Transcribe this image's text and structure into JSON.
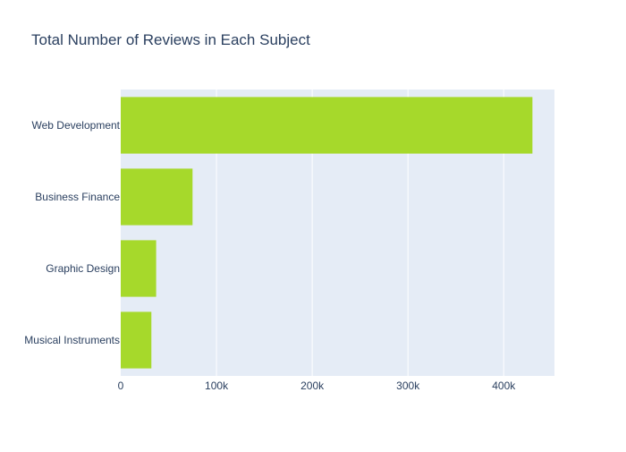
{
  "chart_data": {
    "type": "bar",
    "orientation": "horizontal",
    "title": "Total Number of Reviews in Each Subject",
    "xlabel": "",
    "ylabel": "",
    "categories": [
      "Web Development",
      "Business Finance",
      "Graphic Design",
      "Musical Instruments"
    ],
    "values": [
      430000,
      75000,
      37000,
      32000
    ],
    "xlim": [
      0,
      453000
    ],
    "xticks": [
      0,
      100000,
      200000,
      300000,
      400000
    ],
    "xtick_labels": [
      "0",
      "100k",
      "200k",
      "300k",
      "400k"
    ],
    "grid": true,
    "legend": "none",
    "colors": {
      "bar": "#a6d92b",
      "plot_background": "#e5ecf6",
      "grid": "#ffffff",
      "text": "#2a3f5f"
    }
  }
}
